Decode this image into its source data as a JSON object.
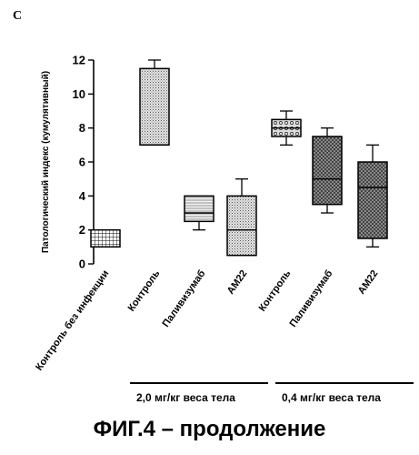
{
  "panel_letter": "C",
  "figure_caption": "ФИГ.4 – продолжение",
  "groups": [
    {
      "label": "2,0 мг/кг веса тела"
    },
    {
      "label": "0,4 мг/кг веса тела"
    }
  ],
  "chart_data": {
    "type": "box",
    "title": "",
    "xlabel": "",
    "ylabel": "Патологический индекс (кумулятивный)",
    "ylim": [
      0,
      12
    ],
    "yticks": [
      "0",
      "2",
      "4",
      "6",
      "8",
      "10",
      "12"
    ],
    "categories": [
      "Контроль без инфекции",
      "Контроль",
      "Паливизумаб",
      "AM22",
      "Контроль",
      "Паливизумаб",
      "AM22"
    ],
    "boxes": [
      {
        "min": 1.0,
        "q1": 1.0,
        "median": 1.0,
        "q3": 2.0,
        "max": 2.0,
        "pattern": "grid"
      },
      {
        "min": 7.0,
        "q1": 7.0,
        "median": 7.0,
        "q3": 11.5,
        "max": 12.0,
        "pattern": "dots"
      },
      {
        "min": 2.0,
        "q1": 2.5,
        "median": 3.0,
        "q3": 4.0,
        "max": 4.0,
        "pattern": "hlines"
      },
      {
        "min": 0.5,
        "q1": 0.5,
        "median": 2.0,
        "q3": 4.0,
        "max": 5.0,
        "pattern": "dots"
      },
      {
        "min": 7.0,
        "q1": 7.5,
        "median": 8.0,
        "q3": 8.5,
        "max": 9.0,
        "pattern": "circles"
      },
      {
        "min": 3.0,
        "q1": 3.5,
        "median": 5.0,
        "q3": 7.5,
        "max": 8.0,
        "pattern": "cross"
      },
      {
        "min": 1.0,
        "q1": 1.5,
        "median": 4.5,
        "q3": 6.0,
        "max": 7.0,
        "pattern": "cross"
      }
    ],
    "grid": false,
    "legend": "none"
  }
}
